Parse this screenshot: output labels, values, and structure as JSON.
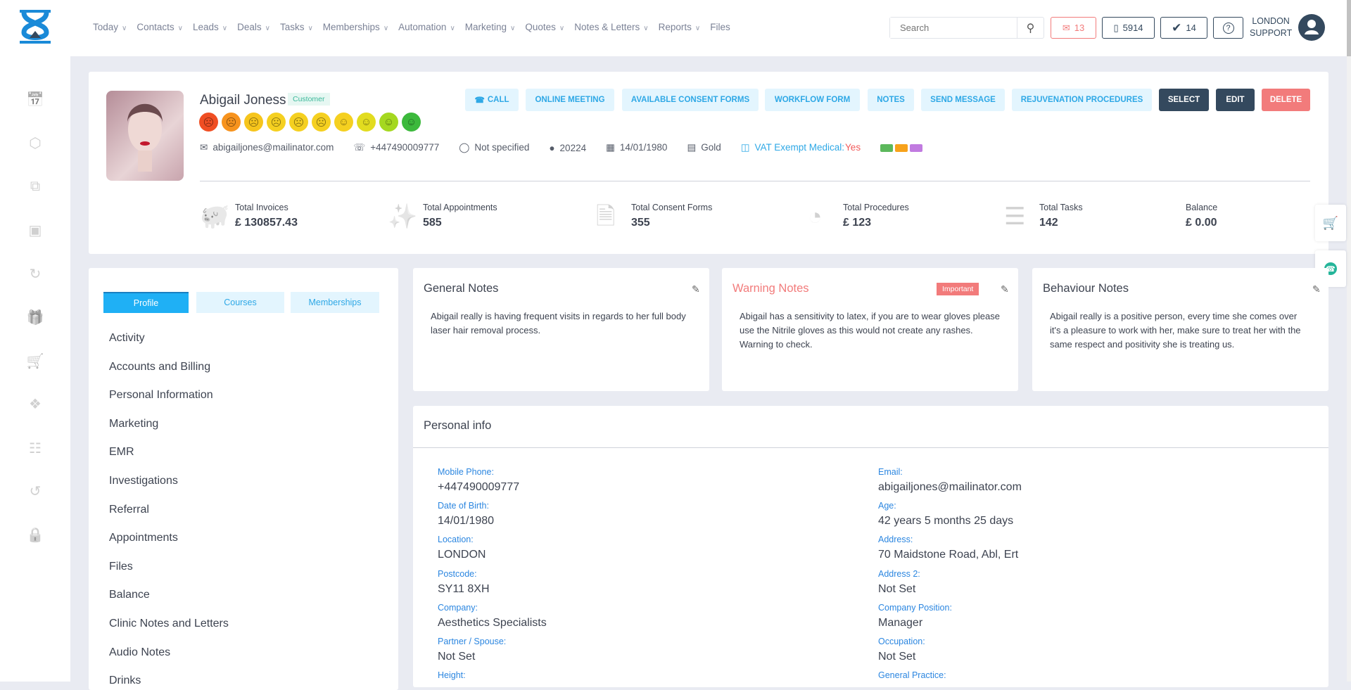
{
  "header": {
    "nav": [
      "Today",
      "Contacts",
      "Leads",
      "Deals",
      "Tasks",
      "Memberships",
      "Automation",
      "Marketing",
      "Quotes",
      "Notes & Letters",
      "Reports",
      "Files"
    ],
    "nav_has_dropdown": [
      true,
      true,
      true,
      true,
      true,
      true,
      true,
      true,
      true,
      true,
      true,
      false
    ],
    "search_placeholder": "Search",
    "mail_count": "13",
    "phone_count": "5914",
    "tasks_count": "14",
    "user_line1": "LONDON",
    "user_line2": "SUPPORT"
  },
  "sidebar": {
    "icons": [
      "calendar-icon",
      "box-icon",
      "layers-icon",
      "camera-icon",
      "history-icon",
      "gift-icon",
      "cart-icon",
      "tags-icon",
      "report-icon",
      "sync-icon",
      "lock-icon"
    ]
  },
  "profile": {
    "name": "Abigail Joness",
    "tag": "Customer",
    "buttons": [
      "CALL",
      "ONLINE MEETING",
      "AVAILABLE CONSENT FORMS",
      "WORKFLOW FORM",
      "NOTES",
      "SEND MESSAGE",
      "REJUVENATION PROCEDURES",
      "SELECT",
      "EDIT",
      "DELETE"
    ],
    "rating_colors": [
      "#f04e23",
      "#f7931e",
      "#f6c51c",
      "#f5d020",
      "#f5d020",
      "#f5d020",
      "#f5d020",
      "#e2dc1f",
      "#a5d820",
      "#3cb93c"
    ],
    "email": "abigailjones@mailinator.com",
    "phone": "+447490009777",
    "gender": "Not specified",
    "id": "20224",
    "dob": "14/01/1980",
    "tier": "Gold",
    "vat_label": "VAT Exempt Medical:",
    "vat_value": "Yes",
    "tag_colors": [
      "#5cb85c",
      "#f7a21b",
      "#c17be0"
    ],
    "stats": [
      {
        "label": "Total Invoices",
        "value": "£ 130857.43",
        "icon": "piggy-bank-icon"
      },
      {
        "label": "Total Appointments",
        "value": "585",
        "icon": "stars-icon"
      },
      {
        "label": "Total Consent Forms",
        "value": "355",
        "icon": "document-icon"
      },
      {
        "label": "Total Procedures",
        "value": "£ 123",
        "icon": "procedure-icon"
      },
      {
        "label": "Total Tasks",
        "value": "142",
        "icon": "checklist-icon"
      },
      {
        "label": "Balance",
        "value": "£ 0.00",
        "icon": ""
      }
    ]
  },
  "left": {
    "tabs": [
      "Profile",
      "Courses",
      "Memberships"
    ],
    "menu": [
      "Activity",
      "Accounts and Billing",
      "Personal Information",
      "Marketing",
      "EMR",
      "Investigations",
      "Referral",
      "Appointments",
      "Files",
      "Balance",
      "Clinic Notes and Letters",
      "Audio Notes",
      "Drinks"
    ]
  },
  "notes": [
    {
      "title": "General Notes",
      "body": "Abigail really is having frequent visits in regards to her full body laser hair removal process."
    },
    {
      "title": "Warning Notes",
      "badge": "Important",
      "body": "Abigail has a sensitivity to latex, if you are to wear gloves please use the Nitrile gloves as this would not create any rashes. Warning to check."
    },
    {
      "title": "Behaviour Notes",
      "body": "Abigail really is a positive person, every time she comes over it's a pleasure to work with her, make sure to treat her with the same respect and positivity she is treating us."
    }
  ],
  "personal_info": {
    "title": "Personal info",
    "left": [
      {
        "label": "Mobile Phone:",
        "value": "+447490009777"
      },
      {
        "label": "Date of Birth:",
        "value": "14/01/1980"
      },
      {
        "label": "Location:",
        "value": "LONDON"
      },
      {
        "label": "Postcode:",
        "value": "SY11 8XH"
      },
      {
        "label": "Company:",
        "value": "Aesthetics Specialists"
      },
      {
        "label": "Partner / Spouse:",
        "value": "Not Set"
      },
      {
        "label": "Height:",
        "value": ""
      }
    ],
    "right": [
      {
        "label": "Email:",
        "value": "abigailjones@mailinator.com"
      },
      {
        "label": "Age:",
        "value": "42 years 5 months 25 days"
      },
      {
        "label": "Address:",
        "value": "70 Maidstone Road, Abl, Ert"
      },
      {
        "label": "Address 2:",
        "value": "Not Set"
      },
      {
        "label": "Company Position:",
        "value": "Manager"
      },
      {
        "label": "Occupation:",
        "value": "Not Set"
      },
      {
        "label": "General Practice:",
        "value": ""
      }
    ]
  }
}
